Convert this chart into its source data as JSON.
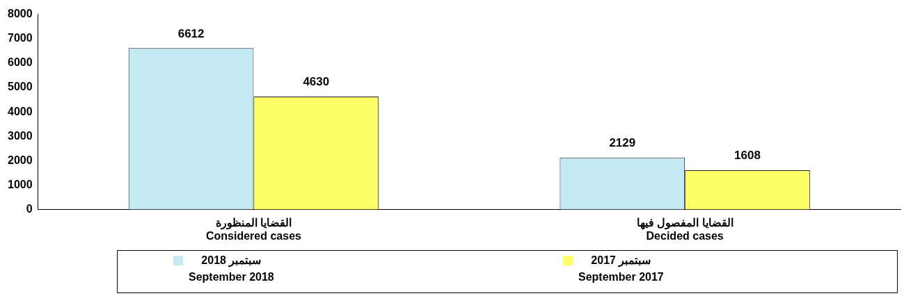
{
  "chart_data": {
    "type": "bar",
    "categories": [
      "القضايا المنظورة\nConsidered cases",
      "القضايا المفصول فيها\nDecided cases"
    ],
    "series": [
      {
        "name": "سبتمبر 2018\nSeptember 2018",
        "color": "#c5e9f3",
        "values": [
          6612,
          2129
        ]
      },
      {
        "name": "سبتمبر 2017\nSeptember 2017",
        "color": "#ffff66",
        "values": [
          4630,
          1608
        ]
      }
    ],
    "ylim": [
      0,
      8000
    ],
    "yticks": [
      0,
      1000,
      2000,
      3000,
      4000,
      5000,
      6000,
      7000,
      8000
    ],
    "grid": false,
    "legend": "bottom",
    "data_labels": true
  }
}
